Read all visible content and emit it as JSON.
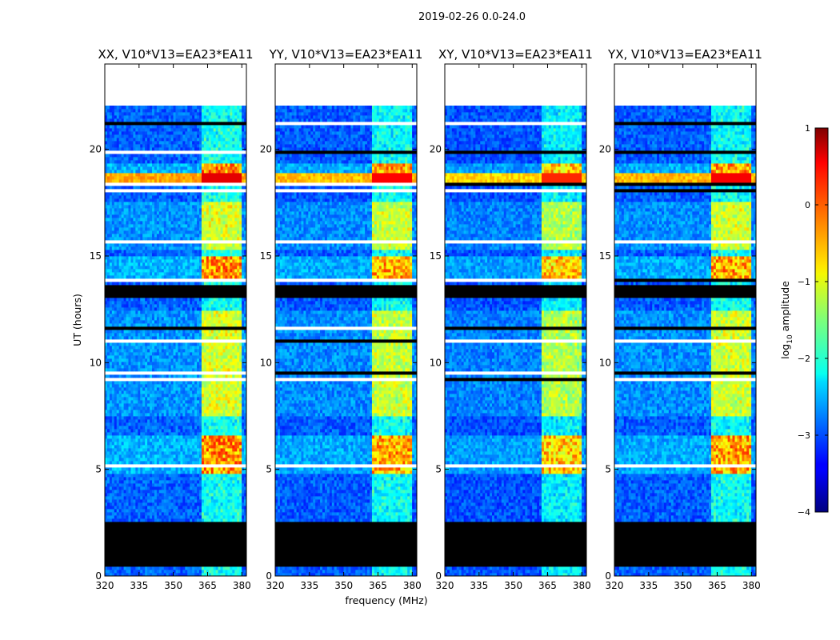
{
  "figure": {
    "suptitle": "2019-02-26 0.0-24.0"
  },
  "chart_data": {
    "type": "heatmap",
    "xlabel": "frequency (MHz)",
    "ylabel": "UT (hours)",
    "xlim": [
      320,
      382
    ],
    "ylim": [
      0,
      24
    ],
    "x_ticks": [
      320,
      335,
      350,
      365,
      380
    ],
    "y_ticks": [
      0,
      5,
      10,
      15,
      20
    ],
    "panels": [
      {
        "title": "XX, V10*V13=EA23*EA11",
        "brightness": 1.0
      },
      {
        "title": "YY, V10*V13=EA23*EA11",
        "brightness": 0.97
      },
      {
        "title": "XY, V10*V13=EA23*EA11",
        "brightness": 0.93
      },
      {
        "title": "YX, V10*V13=EA23*EA11",
        "brightness": 0.98
      }
    ],
    "colorbar": {
      "label": "log10 amplitude",
      "label_main": "log",
      "label_sub": "10",
      "label_rest": " amplitude",
      "range": [
        -4,
        1
      ],
      "ticks": [
        "1",
        "0",
        "−1",
        "−2",
        "−3",
        "−4"
      ],
      "colormap": "jet"
    },
    "no_data_ut": [
      [
        0.5,
        2.6
      ],
      [
        13.0,
        13.7
      ],
      [
        22.0,
        24.0
      ]
    ],
    "rfi_band_mhz": [
      362,
      380
    ],
    "high_amplitude_ut": [
      [
        4.8,
        6.6
      ],
      [
        13.8,
        15.0
      ],
      [
        18.4,
        19.4
      ]
    ]
  }
}
